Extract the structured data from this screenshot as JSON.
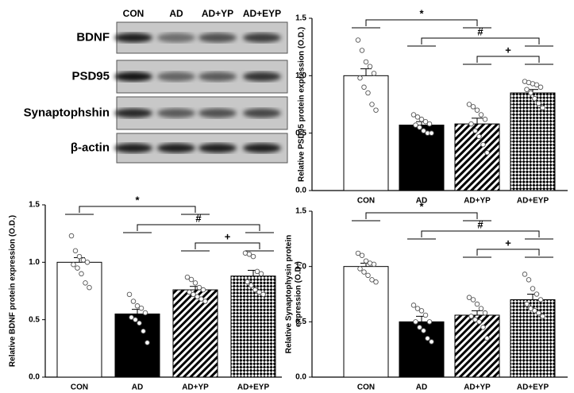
{
  "blot": {
    "lanes": [
      "CON",
      "AD",
      "AD+YP",
      "AD+EYP"
    ],
    "rows": [
      "BDNF",
      "PSD95",
      "Synaptophshin",
      "β-actin"
    ]
  },
  "chart_data": [
    {
      "type": "bar",
      "ylabel": [
        "Relative PSD95 protein expression (O.D.)"
      ],
      "categories": [
        "CON",
        "AD",
        "AD+YP",
        "AD+EYP"
      ],
      "values": [
        1.0,
        0.57,
        0.58,
        0.85
      ],
      "errors": [
        0.06,
        0.03,
        0.05,
        0.03
      ],
      "points": [
        [
          1.31,
          1.22,
          1.12,
          1.08,
          1.02,
          0.98,
          0.9,
          0.85,
          0.75,
          0.7
        ],
        [
          0.66,
          0.64,
          0.62,
          0.6,
          0.58,
          0.57,
          0.55,
          0.52,
          0.5,
          0.5
        ],
        [
          0.75,
          0.73,
          0.7,
          0.66,
          0.62,
          0.58,
          0.52,
          0.47,
          0.4,
          0.33
        ],
        [
          0.95,
          0.94,
          0.93,
          0.92,
          0.9,
          0.88,
          0.85,
          0.8,
          0.76,
          0.72
        ]
      ],
      "fills": [
        "white",
        "black",
        "diagonal",
        "checker"
      ],
      "ylim": [
        0,
        1.5
      ],
      "yticks": [
        {
          "value": 0,
          "label": "0.0"
        },
        0.5,
        {
          "value": 1,
          "label": "1.0"
        },
        1.5
      ],
      "significance": [
        "*",
        "#",
        "+"
      ]
    },
    {
      "type": "bar",
      "ylabel": [
        "Relative BDNF protein expression (O.D.)"
      ],
      "categories": [
        "CON",
        "AD",
        "AD+YP",
        "AD+EYP"
      ],
      "values": [
        1.0,
        0.55,
        0.76,
        0.88
      ],
      "errors": [
        0.04,
        0.04,
        0.03,
        0.05
      ],
      "points": [
        [
          1.23,
          1.1,
          1.05,
          1.02,
          1.0,
          0.98,
          0.95,
          0.9,
          0.82,
          0.78
        ],
        [
          0.72,
          0.66,
          0.62,
          0.6,
          0.56,
          0.52,
          0.5,
          0.47,
          0.4,
          0.3
        ],
        [
          0.87,
          0.85,
          0.82,
          0.78,
          0.76,
          0.74,
          0.72,
          0.7,
          0.68,
          0.66
        ],
        [
          1.08,
          1.07,
          1.05,
          0.92,
          0.9,
          0.83,
          0.8,
          0.76,
          0.74,
          0.72
        ]
      ],
      "fills": [
        "white",
        "black",
        "diagonal",
        "checker"
      ],
      "ylim": [
        0,
        1.5
      ],
      "yticks": [
        {
          "value": 0,
          "label": "0.0"
        },
        0.5,
        {
          "value": 1,
          "label": "1.0"
        },
        1.5
      ],
      "significance": [
        "*",
        "#",
        "+"
      ]
    },
    {
      "type": "bar",
      "ylabel": [
        "Relative Synaptophysin protein",
        "expression (O.D.)"
      ],
      "categories": [
        "CON",
        "AD",
        "AD+YP",
        "AD+EYP"
      ],
      "values": [
        1.0,
        0.5,
        0.56,
        0.7
      ],
      "errors": [
        0.03,
        0.05,
        0.04,
        0.05
      ],
      "points": [
        [
          1.12,
          1.1,
          1.05,
          1.03,
          1.02,
          0.98,
          0.95,
          0.92,
          0.88,
          0.86
        ],
        [
          0.65,
          0.62,
          0.6,
          0.56,
          0.5,
          0.5,
          0.45,
          0.42,
          0.35,
          0.32
        ],
        [
          0.72,
          0.7,
          0.66,
          0.62,
          0.58,
          0.55,
          0.52,
          0.5,
          0.45,
          0.35
        ],
        [
          0.93,
          0.88,
          0.8,
          0.75,
          0.7,
          0.66,
          0.62,
          0.6,
          0.58,
          0.55
        ]
      ],
      "fills": [
        "white",
        "black",
        "diagonal",
        "checker"
      ],
      "ylim": [
        0,
        1.5
      ],
      "yticks": [
        {
          "value": 0,
          "label": "0.0"
        },
        0.5,
        {
          "value": 1,
          "label": "1.0"
        },
        1.5
      ],
      "significance": [
        "*",
        "#",
        "+"
      ]
    }
  ]
}
